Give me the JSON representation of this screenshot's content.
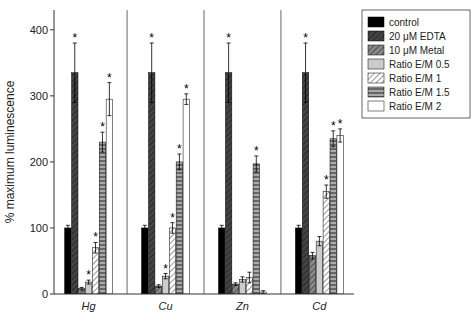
{
  "chart_data": {
    "type": "bar",
    "ylabel": "% maximum luminescence",
    "categories": [
      "Hg",
      "Cu",
      "Zn",
      "Cd"
    ],
    "series": [
      {
        "name": "control",
        "color": "#000000",
        "values": [
          100,
          100,
          100,
          100
        ],
        "errors": [
          4,
          4,
          4,
          4
        ],
        "annotations": [
          null,
          null,
          null,
          null
        ]
      },
      {
        "name": "20 μM EDTA",
        "color": "#444444",
        "values": [
          335,
          335,
          335,
          335
        ],
        "errors": [
          45,
          45,
          45,
          45
        ],
        "annotations": [
          "*",
          "*",
          "*",
          "*"
        ]
      },
      {
        "name": "10 μM Metal",
        "color": "#888888",
        "values": [
          8,
          12,
          15,
          58
        ],
        "errors": [
          2,
          2,
          2,
          5
        ],
        "annotations": [
          null,
          null,
          null,
          null
        ]
      },
      {
        "name": "Ratio E/M 0.5",
        "color": "#cccccc",
        "values": [
          18,
          27,
          22,
          80
        ],
        "errors": [
          3,
          4,
          4,
          7
        ],
        "annotations": [
          "*",
          "*",
          null,
          null
        ]
      },
      {
        "name": "Ratio E/M 1",
        "color": "#ffffff",
        "values": [
          70,
          100,
          25,
          155
        ],
        "errors": [
          8,
          8,
          8,
          10
        ],
        "annotations": [
          "*",
          "*",
          null,
          "*"
        ]
      },
      {
        "name": "Ratio E/M 1.5",
        "color": "#aaaaaa",
        "values": [
          230,
          200,
          197,
          235
        ],
        "errors": [
          15,
          12,
          12,
          12
        ],
        "annotations": [
          "*",
          "*",
          "*",
          "*"
        ]
      },
      {
        "name": "Ratio E/M 2",
        "color": "#ffffff",
        "values": [
          295,
          295,
          3,
          240
        ],
        "errors": [
          25,
          8,
          2,
          10
        ],
        "annotations": [
          "*",
          "*",
          null,
          "*"
        ]
      }
    ],
    "ylim": [
      0,
      430
    ],
    "yticks": [
      0,
      100,
      200,
      300,
      400
    ],
    "grid": false,
    "legend": "upper right"
  }
}
